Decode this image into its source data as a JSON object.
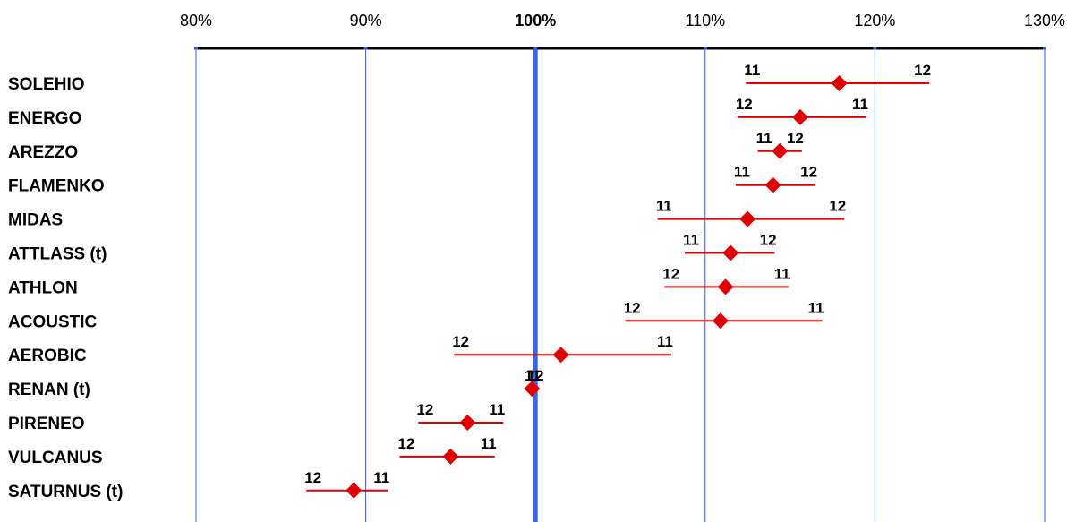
{
  "chart_data": {
    "type": "scatter",
    "title": "",
    "xlabel": "",
    "ylabel": "",
    "xlim": [
      80,
      130
    ],
    "x_ticks": [
      80,
      90,
      100,
      110,
      120,
      130
    ],
    "x_tick_labels": [
      "80%",
      "90%",
      "100%",
      "110%",
      "120%",
      "130%"
    ],
    "reference_line": 100,
    "grid": true,
    "colors": {
      "axis": "#000000",
      "grid": "#3a56e0",
      "reference": "#3a66e8",
      "range_line": "#e00000",
      "marker": "#e00000"
    },
    "categories": [
      "SOLEHIO",
      "ENERGO",
      "AREZZO",
      "FLAMENKO",
      "MIDAS",
      "ATTLASS (t)",
      "ATHLON",
      "ACOUSTIC",
      "AEROBIC",
      "RENAN (t)",
      "PIRENEO",
      "VULCANUS",
      "SATURNUS (t)"
    ],
    "series": [
      {
        "name": "",
        "values": [
          117.9,
          115.6,
          114.4,
          114.0,
          112.5,
          111.5,
          111.2,
          110.9,
          101.5,
          99.8,
          96.0,
          95.0,
          89.3
        ]
      }
    ],
    "ranges": [
      {
        "left": 112.4,
        "right": 123.2,
        "left_label": "11",
        "right_label": "12"
      },
      {
        "left": 111.9,
        "right": 119.5,
        "left_label": "12",
        "right_label": "11"
      },
      {
        "left": 113.1,
        "right": 115.7,
        "left_label": "11",
        "right_label": "12"
      },
      {
        "left": 111.8,
        "right": 116.5,
        "left_label": "11",
        "right_label": "12"
      },
      {
        "left": 107.2,
        "right": 118.2,
        "left_label": "11",
        "right_label": "12"
      },
      {
        "left": 108.8,
        "right": 114.1,
        "left_label": "11",
        "right_label": "12"
      },
      {
        "left": 107.6,
        "right": 114.9,
        "left_label": "12",
        "right_label": "11"
      },
      {
        "left": 105.3,
        "right": 116.9,
        "left_label": "12",
        "right_label": "11"
      },
      {
        "left": 95.2,
        "right": 108.0,
        "left_label": "12",
        "right_label": "11"
      },
      {
        "left": 99.6,
        "right": 100.2,
        "left_label": "12",
        "right_label": "11"
      },
      {
        "left": 93.1,
        "right": 98.1,
        "left_label": "12",
        "right_label": "11"
      },
      {
        "left": 92.0,
        "right": 97.6,
        "left_label": "12",
        "right_label": "11"
      },
      {
        "left": 86.5,
        "right": 91.3,
        "left_label": "12",
        "right_label": "11"
      }
    ]
  }
}
